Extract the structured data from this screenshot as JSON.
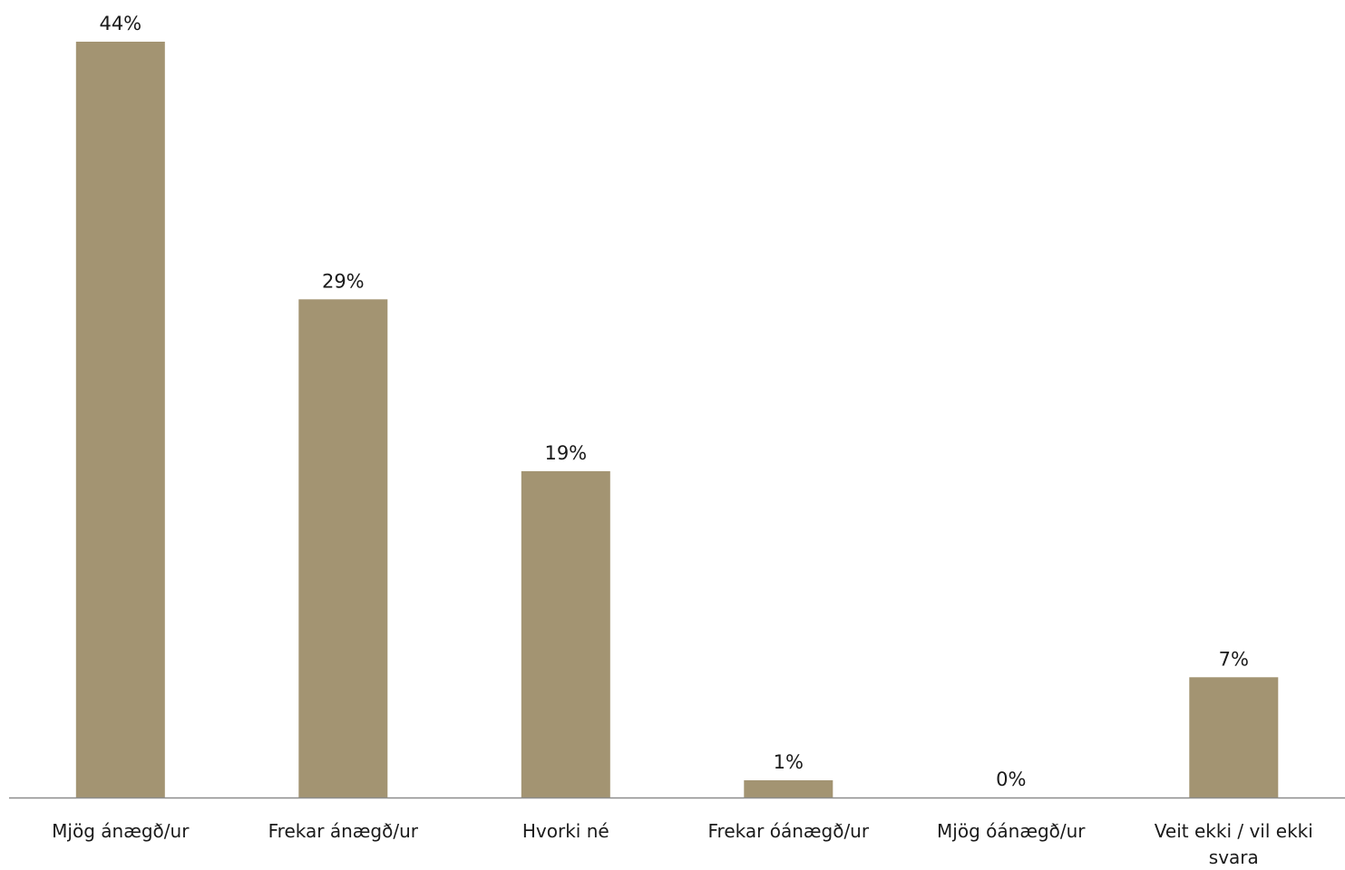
{
  "chart_data": {
    "type": "bar",
    "categories": [
      [
        "Mjög ánægð/ur"
      ],
      [
        "Frekar ánægð/ur"
      ],
      [
        "Hvorki né"
      ],
      [
        "Frekar óánægð/ur"
      ],
      [
        "Mjög óánægð/ur"
      ],
      [
        "Veit ekki / vil ekki",
        "svara"
      ]
    ],
    "values": [
      44,
      29,
      19,
      1,
      0,
      7
    ],
    "value_labels": [
      "44%",
      "29%",
      "19%",
      "1%",
      "0%",
      "7%"
    ],
    "unit": "%",
    "title": "",
    "xlabel": "",
    "ylabel": "",
    "ylim": [
      0,
      44
    ],
    "grid": false,
    "legend": "none",
    "colors": {
      "bar": "#a39472",
      "axis": "#8c8c8c",
      "text": "#1a1a1a"
    }
  }
}
